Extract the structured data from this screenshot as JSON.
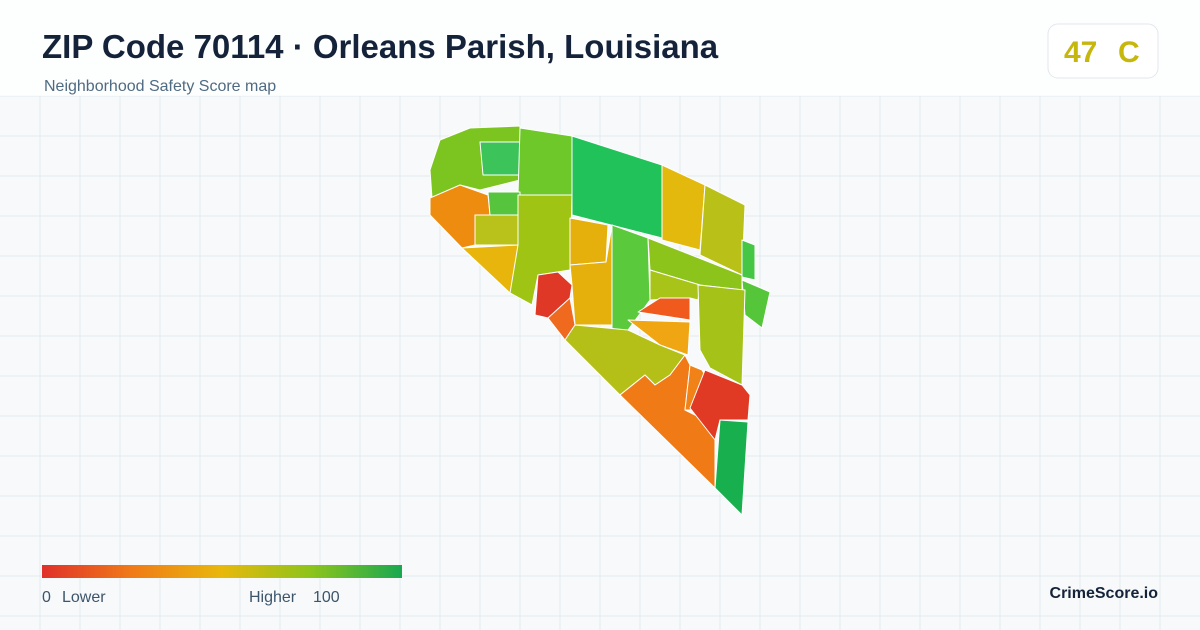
{
  "header": {
    "title": "ZIP Code 70114 · Orleans Parish, Louisiana",
    "subtitle": "Neighborhood Safety Score map"
  },
  "score": {
    "value": "47",
    "grade": "C"
  },
  "legend": {
    "min": "0",
    "min_label": "Lower",
    "max_label": "Higher",
    "max": "100"
  },
  "brand": "CrimeScore.io"
}
